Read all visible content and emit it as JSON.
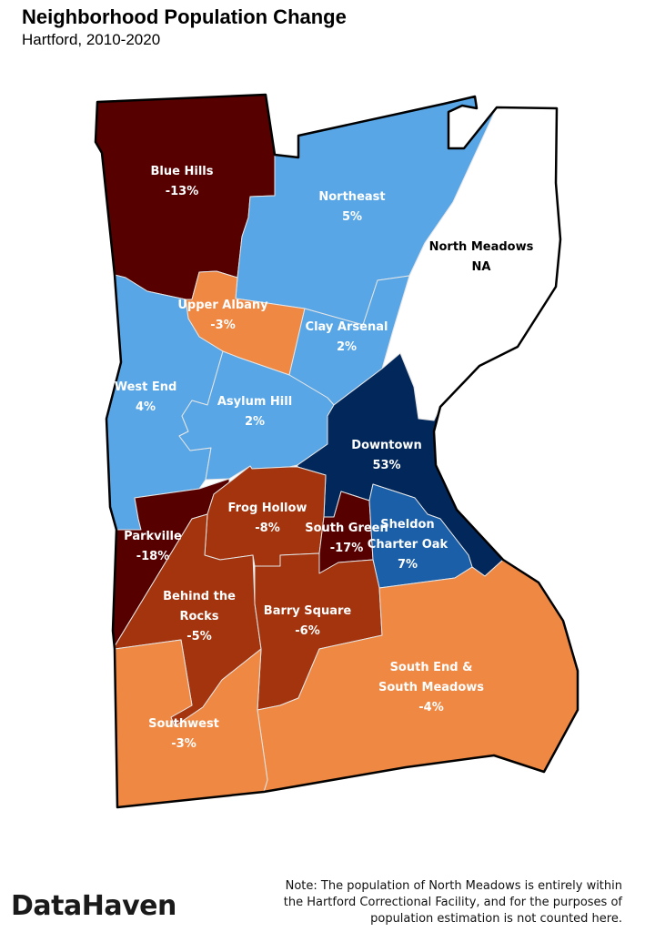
{
  "title": "Neighborhood Population Change",
  "subtitle": "Hartford, 2010-2020",
  "logo": "DataHaven",
  "note_lines": [
    "Note: The population of North Meadows is entirely within",
    "the Hartford Correctional Facility, and for the purposes of",
    "population estimation is not counted here."
  ],
  "colors": {
    "large_decline": "#560000",
    "decline": "#a3340d",
    "small_decline": "#ef8843",
    "small_growth": "#58a6e6",
    "growth": "#1a5fa8",
    "large_growth": "#02275a",
    "no_data": "#ffffff"
  },
  "regions": [
    {
      "id": "blue-hills",
      "label_lines": [
        "Blue Hills"
      ],
      "value": "-13%",
      "color": "#560000"
    },
    {
      "id": "northeast",
      "label_lines": [
        "Northeast"
      ],
      "value": "5%",
      "color": "#58a6e6"
    },
    {
      "id": "north-meadows",
      "label_lines": [
        "North Meadows"
      ],
      "value": "NA",
      "color": "#ffffff"
    },
    {
      "id": "upper-albany",
      "label_lines": [
        "Upper Albany"
      ],
      "value": "-3%",
      "color": "#ef8843"
    },
    {
      "id": "clay-arsenal",
      "label_lines": [
        "Clay Arsenal"
      ],
      "value": "2%",
      "color": "#58a6e6"
    },
    {
      "id": "west-end",
      "label_lines": [
        "West End"
      ],
      "value": "4%",
      "color": "#58a6e6"
    },
    {
      "id": "asylum-hill",
      "label_lines": [
        "Asylum Hill"
      ],
      "value": "2%",
      "color": "#58a6e6"
    },
    {
      "id": "downtown",
      "label_lines": [
        "Downtown"
      ],
      "value": "53%",
      "color": "#02275a"
    },
    {
      "id": "parkville",
      "label_lines": [
        "Parkville"
      ],
      "value": "-18%",
      "color": "#560000"
    },
    {
      "id": "frog-hollow",
      "label_lines": [
        "Frog Hollow"
      ],
      "value": "-8%",
      "color": "#a3340d"
    },
    {
      "id": "south-green",
      "label_lines": [
        "South Green"
      ],
      "value": "-17%",
      "color": "#560000"
    },
    {
      "id": "sheldon-charter-oak",
      "label_lines": [
        "Sheldon",
        "Charter Oak"
      ],
      "value": "7%",
      "color": "#1a5fa8"
    },
    {
      "id": "behind-the-rocks",
      "label_lines": [
        "Behind the",
        "Rocks"
      ],
      "value": "-5%",
      "color": "#a3340d"
    },
    {
      "id": "barry-square",
      "label_lines": [
        "Barry Square"
      ],
      "value": "-6%",
      "color": "#a3340d"
    },
    {
      "id": "south-end-south-meadows",
      "label_lines": [
        "South End &",
        "South Meadows"
      ],
      "value": "-4%",
      "color": "#ef8843"
    },
    {
      "id": "southwest",
      "label_lines": [
        "Southwest"
      ],
      "value": "-3%",
      "color": "#ef8843"
    }
  ]
}
